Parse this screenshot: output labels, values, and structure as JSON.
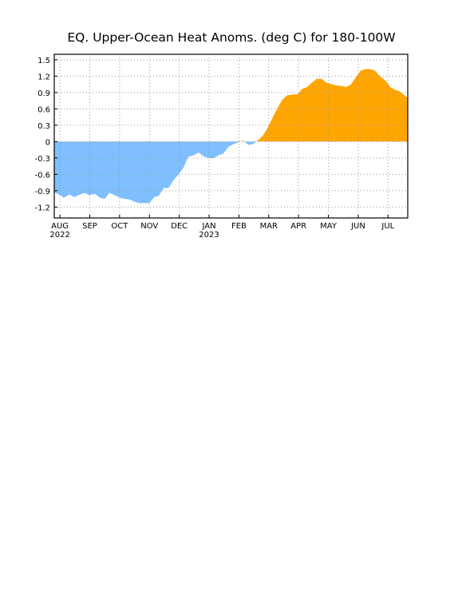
{
  "chart_data": {
    "type": "area",
    "title": "EQ. Upper-Ocean Heat Anoms. (deg C) for 180-100W",
    "x": [
      -0.19,
      0,
      0.13,
      0.32,
      0.48,
      0.67,
      0.83,
      0.99,
      1.18,
      1.34,
      1.5,
      1.66,
      1.82,
      2.01,
      2.17,
      2.33,
      2.49,
      2.67,
      2.83,
      2.99,
      3.16,
      3.32,
      3.48,
      3.64,
      3.82,
      3.98,
      4.14,
      4.3,
      4.49,
      4.65,
      4.81,
      4.97,
      5.16,
      5.32,
      5.48,
      5.64,
      5.8,
      5.96,
      6.15,
      6.31,
      6.47,
      6.63,
      6.82,
      6.98,
      7.14,
      7.3,
      7.46,
      7.62,
      7.78,
      7.97,
      8.13,
      8.29,
      8.45,
      8.61,
      8.77,
      8.93,
      9.12,
      9.28,
      9.44,
      9.6,
      9.76,
      9.92,
      10.08,
      10.24,
      10.4,
      10.56,
      10.72,
      10.91,
      11.07,
      11.23,
      11.39,
      11.55,
      11.66
    ],
    "values": [
      -0.93,
      -0.98,
      -1.03,
      -0.97,
      -1.02,
      -0.97,
      -0.94,
      -0.98,
      -0.96,
      -1.03,
      -1.05,
      -0.94,
      -0.98,
      -1.03,
      -1.05,
      -1.06,
      -1.1,
      -1.13,
      -1.13,
      -1.13,
      -1.02,
      -0.99,
      -0.85,
      -0.85,
      -0.7,
      -0.6,
      -0.48,
      -0.28,
      -0.25,
      -0.2,
      -0.27,
      -0.3,
      -0.3,
      -0.25,
      -0.22,
      -0.1,
      -0.05,
      -0.02,
      0.02,
      -0.06,
      -0.05,
      0.02,
      0.12,
      0.27,
      0.45,
      0.62,
      0.77,
      0.85,
      0.86,
      0.87,
      0.97,
      1.0,
      1.08,
      1.15,
      1.15,
      1.08,
      1.05,
      1.03,
      1.02,
      1.0,
      1.05,
      1.18,
      1.3,
      1.33,
      1.33,
      1.3,
      1.2,
      1.12,
      1.0,
      0.95,
      0.92,
      0.85,
      0.8
    ],
    "positive_color": "#ffa500",
    "negative_color": "#7fbfff",
    "xlim": [
      -0.19,
      11.66
    ],
    "ylim": [
      -1.4,
      1.6
    ],
    "xticks": [
      {
        "value": 0,
        "label": "AUG"
      },
      {
        "value": 1,
        "label": "SEP"
      },
      {
        "value": 2,
        "label": "OCT"
      },
      {
        "value": 3,
        "label": "NOV"
      },
      {
        "value": 4,
        "label": "DEC"
      },
      {
        "value": 5,
        "label": "JAN"
      },
      {
        "value": 6,
        "label": "FEB"
      },
      {
        "value": 7,
        "label": "MAR"
      },
      {
        "value": 8,
        "label": "APR"
      },
      {
        "value": 9,
        "label": "MAY"
      },
      {
        "value": 10,
        "label": "JUN"
      },
      {
        "value": 11,
        "label": "JUL"
      }
    ],
    "year_labels": [
      {
        "value": 0,
        "label": "2022"
      },
      {
        "value": 5,
        "label": "2023"
      }
    ],
    "yticks": [
      1.5,
      1.2,
      0.9,
      0.6,
      0.3,
      0,
      -0.3,
      -0.6,
      -0.9,
      -1.2
    ],
    "grid": true
  }
}
